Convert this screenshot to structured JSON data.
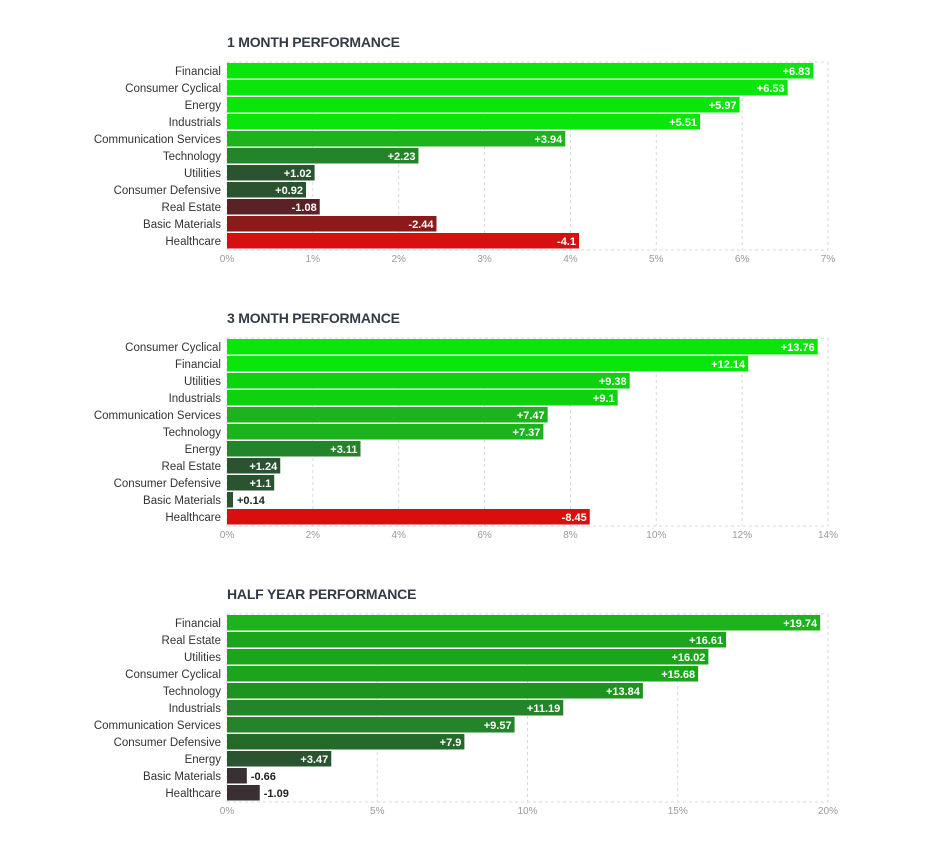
{
  "chart_data": [
    {
      "type": "bar",
      "title": "1 MONTH PERFORMANCE",
      "categories": [
        "Financial",
        "Consumer Cyclical",
        "Energy",
        "Industrials",
        "Communication Services",
        "Technology",
        "Utilities",
        "Consumer Defensive",
        "Real Estate",
        "Basic Materials",
        "Healthcare"
      ],
      "values": [
        6.83,
        6.53,
        5.97,
        5.51,
        3.94,
        2.23,
        1.02,
        0.92,
        -1.08,
        -2.44,
        -4.1
      ],
      "value_labels": [
        "+6.83",
        "+6.53",
        "+5.97",
        "+5.51",
        "+3.94",
        "+2.23",
        "+1.02",
        "+0.92",
        "-1.08",
        "-2.44",
        "-4.1"
      ],
      "colors": [
        "#0ae50a",
        "#0ae50a",
        "#0ae50a",
        "#0ae50a",
        "#1cb31c",
        "#24842a",
        "#2a5330",
        "#2a5330",
        "#5a2226",
        "#8b1a1a",
        "#d90e0e"
      ],
      "xlim": [
        0,
        7
      ],
      "xticks": [
        0,
        1,
        2,
        3,
        4,
        5,
        6,
        7
      ],
      "xtick_labels": [
        "0%",
        "1%",
        "2%",
        "3%",
        "4%",
        "5%",
        "6%",
        "7%"
      ],
      "grid": true
    },
    {
      "type": "bar",
      "title": "3 MONTH PERFORMANCE",
      "categories": [
        "Consumer Cyclical",
        "Financial",
        "Utilities",
        "Industrials",
        "Communication Services",
        "Technology",
        "Energy",
        "Real Estate",
        "Consumer Defensive",
        "Basic Materials",
        "Healthcare"
      ],
      "values": [
        13.76,
        12.14,
        9.38,
        9.1,
        7.47,
        7.37,
        3.11,
        1.24,
        1.1,
        0.14,
        -8.45
      ],
      "value_labels": [
        "+13.76",
        "+12.14",
        "+9.38",
        "+9.1",
        "+7.47",
        "+7.37",
        "+3.11",
        "+1.24",
        "+1.1",
        "+0.14",
        "-8.45"
      ],
      "colors": [
        "#0ae50a",
        "#0ae50a",
        "#0fd20f",
        "#0fd20f",
        "#1cb31c",
        "#1cb31c",
        "#24842a",
        "#2a5330",
        "#2a5330",
        "#2a5330",
        "#d90e0e"
      ],
      "xlim": [
        0,
        14
      ],
      "xticks": [
        0,
        2,
        4,
        6,
        8,
        10,
        12,
        14
      ],
      "xtick_labels": [
        "0%",
        "2%",
        "4%",
        "6%",
        "8%",
        "10%",
        "12%",
        "14%"
      ],
      "grid": true
    },
    {
      "type": "bar",
      "title": "HALF YEAR PERFORMANCE",
      "categories": [
        "Financial",
        "Real Estate",
        "Utilities",
        "Consumer Cyclical",
        "Technology",
        "Industrials",
        "Communication Services",
        "Consumer Defensive",
        "Energy",
        "Basic Materials",
        "Healthcare"
      ],
      "values": [
        19.74,
        16.61,
        16.02,
        15.68,
        13.84,
        11.19,
        9.57,
        7.9,
        3.47,
        -0.66,
        -1.09
      ],
      "value_labels": [
        "+19.74",
        "+16.61",
        "+16.02",
        "+15.68",
        "+13.84",
        "+11.19",
        "+9.57",
        "+7.9",
        "+3.47",
        "-0.66",
        "-1.09"
      ],
      "colors": [
        "#1cb31c",
        "#1ca41c",
        "#1ca41c",
        "#1ca41c",
        "#1e9320",
        "#24842a",
        "#24842a",
        "#246b2a",
        "#2a5330",
        "#3a2f33",
        "#3a2f33"
      ],
      "xlim": [
        0,
        20
      ],
      "xticks": [
        0,
        5,
        10,
        15,
        20
      ],
      "xtick_labels": [
        "0%",
        "5%",
        "10%",
        "15%",
        "20%"
      ],
      "grid": true
    }
  ]
}
